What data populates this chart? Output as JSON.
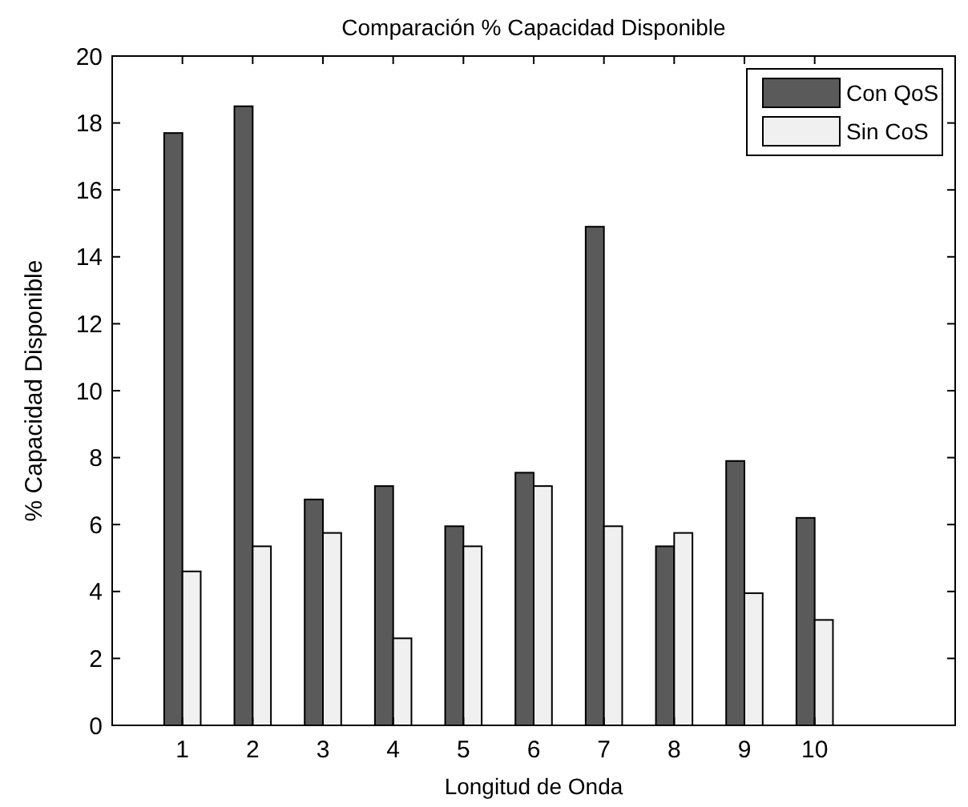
{
  "chart_data": {
    "type": "bar",
    "title": "Comparación % Capacidad Disponible",
    "xlabel": "Longitud de Onda",
    "ylabel": "% Capacidad Disponible",
    "x": [
      1,
      2,
      3,
      4,
      5,
      6,
      7,
      8,
      9,
      10
    ],
    "xlim": [
      0,
      12
    ],
    "xticks": [
      1,
      2,
      3,
      4,
      5,
      6,
      7,
      8,
      9,
      10
    ],
    "ylim": [
      0,
      20
    ],
    "yticks": [
      0,
      2,
      4,
      6,
      8,
      10,
      12,
      14,
      16,
      18,
      20
    ],
    "series": [
      {
        "name": "Con QoS",
        "color": "#5a5a5a",
        "values": [
          17.7,
          18.5,
          6.75,
          7.15,
          5.95,
          7.55,
          14.9,
          5.35,
          7.9,
          6.2
        ]
      },
      {
        "name": "Sin CoS",
        "color": "#f0f0f0",
        "values": [
          4.6,
          5.35,
          5.75,
          2.6,
          5.35,
          7.15,
          5.95,
          5.75,
          3.95,
          3.15
        ]
      }
    ],
    "legend": "top right",
    "grid": false
  }
}
